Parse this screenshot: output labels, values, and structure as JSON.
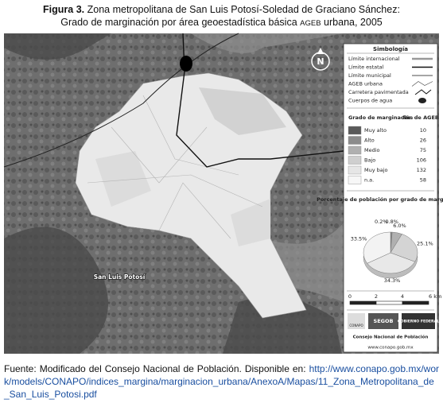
{
  "caption": {
    "label": "Figura 3.",
    "line1": "Zona metropolitana de San Luis Potosí-Soledad de Graciano Sánchez:",
    "line2_a": "Grado de marginación por área geoestadística básica",
    "line2_b": "AGEB",
    "line2_c": "urbana, 2005"
  },
  "map": {
    "place_label": "San Luis Potosí",
    "north": "N"
  },
  "legend": {
    "title": "Simbología",
    "items": [
      "Límite internacional",
      "Límite estatal",
      "Límite municipal",
      "AGEB urbana",
      "Carretera pavimentada",
      "Cuerpos de agua"
    ]
  },
  "table": {
    "header": [
      "Grado de marginación",
      "No. de AGEB"
    ],
    "rows": [
      [
        "Muy alto",
        10
      ],
      [
        "Alto",
        26
      ],
      [
        "Medio",
        75
      ],
      [
        "Bajo",
        106
      ],
      [
        "Muy bajo",
        132
      ],
      [
        "n.a.",
        58
      ]
    ],
    "colors": [
      "#5a5a5a",
      "#8c8c8c",
      "#b0b0b0",
      "#cfcfcf",
      "#e6e6e6",
      "#f7f7f7"
    ]
  },
  "chart_data": {
    "type": "pie",
    "title": "Porcentaje de población por grado de marginación",
    "values": [
      0.2,
      0.8,
      6.0,
      25.1,
      34.3,
      33.5
    ],
    "value_labels": [
      "0.2%",
      "0.8%",
      "6.0%",
      "25.1%",
      "34.3%",
      "33.5%"
    ],
    "colors": [
      "#5a5a5a",
      "#8c8c8c",
      "#b0b0b0",
      "#d4d4d4",
      "#e8e8e8",
      "#f3f3f3"
    ]
  },
  "scale": {
    "labels": [
      "0",
      "2",
      "4",
      "6 km"
    ]
  },
  "logos": {
    "conapo": "CONAPO",
    "segob": "SEGOB",
    "gobierno": "GOBIERNO FEDERAL"
  },
  "credits": {
    "org": "Consejo Nacional de Población",
    "web": "www.conapo.gob.mx"
  },
  "source": {
    "text": "Fuente: Modificado del Consejo Nacional de Población. Disponible en:",
    "url": "http://www.conapo.gob.mx/work/models/CONAPO/indices_margina/marginacion_urbana/AnexoA/Mapas/11_Zona_Metropolitana_de_San_Luis_Potosi.pdf"
  }
}
